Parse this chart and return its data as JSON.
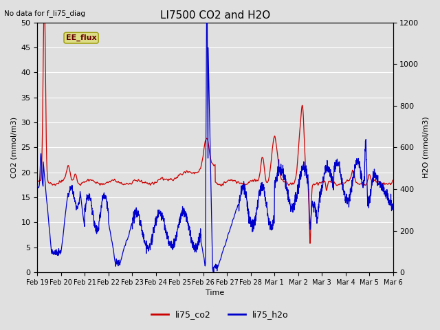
{
  "title": "LI7500 CO2 and H2O",
  "top_left_text": "No data for f_li75_diag",
  "xlabel": "Time",
  "ylabel_left": "CO2 (mmol/m3)",
  "ylabel_right": "H2O (mmol/m3)",
  "ylim_left": [
    0,
    50
  ],
  "ylim_right": [
    0,
    1200
  ],
  "yticks_left": [
    0,
    5,
    10,
    15,
    20,
    25,
    30,
    35,
    40,
    45,
    50
  ],
  "yticks_right": [
    0,
    200,
    400,
    600,
    800,
    1000,
    1200
  ],
  "co2_color": "#cc0000",
  "h2o_color": "#0000cc",
  "bg_color": "#e0e0e0",
  "plot_bg_color": "#e0e0e0",
  "grid_color": "#ffffff",
  "annotation_text": "EE_flux",
  "annotation_bg": "#dddd88",
  "legend_co2": "li75_co2",
  "legend_h2o": "li75_h2o",
  "x_tick_labels": [
    "Feb 19",
    "Feb 20",
    "Feb 21",
    "Feb 22",
    "Feb 23",
    "Feb 24",
    "Feb 25",
    "Feb 26",
    "Feb 27",
    "Feb 28",
    "Mar 1",
    "Mar 2",
    "Mar 3",
    "Mar 4",
    "Mar 5",
    "Mar 6"
  ],
  "n_points": 2000
}
